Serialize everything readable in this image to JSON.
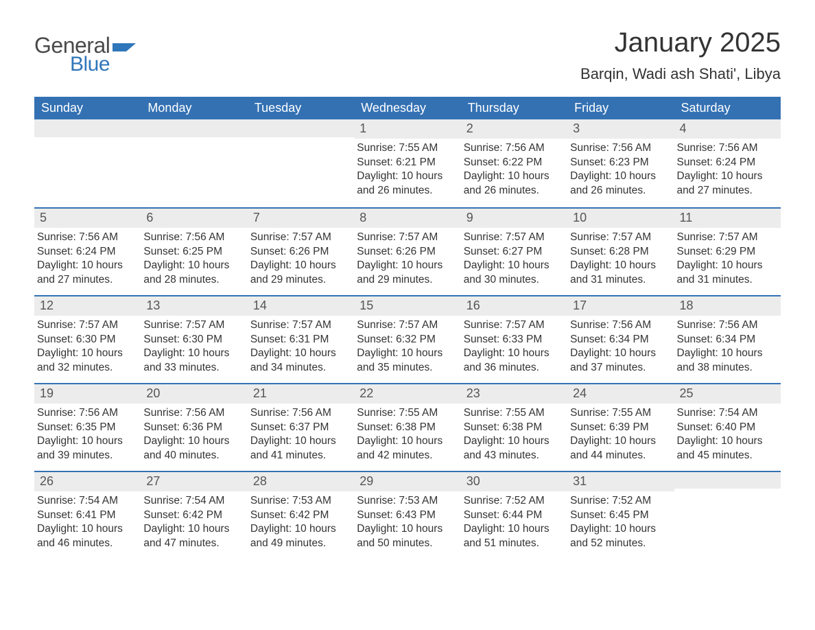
{
  "logo": {
    "word1": "General",
    "word2": "Blue",
    "text_color_general": "#4a4a4a",
    "text_color_blue": "#2f76ba",
    "flag_color": "#2f76ba"
  },
  "header": {
    "month_title": "January 2025",
    "location": "Barqin, Wadi ash Shati', Libya"
  },
  "colors": {
    "header_row_bg": "#3471b3",
    "header_row_text": "#ffffff",
    "daynum_band_bg": "#ececec",
    "daynum_band_border": "#3471b3",
    "body_text": "#333333",
    "page_bg": "#ffffff"
  },
  "typography": {
    "title_fontsize": 40,
    "location_fontsize": 22,
    "dow_fontsize": 18,
    "daynum_fontsize": 18,
    "body_fontsize": 15.5,
    "font_family": "Arial"
  },
  "days_of_week": [
    "Sunday",
    "Monday",
    "Tuesday",
    "Wednesday",
    "Thursday",
    "Friday",
    "Saturday"
  ],
  "weeks": [
    [
      {
        "empty": true
      },
      {
        "empty": true
      },
      {
        "empty": true
      },
      {
        "day": "1",
        "sunrise": "Sunrise: 7:55 AM",
        "sunset": "Sunset: 6:21 PM",
        "daylight1": "Daylight: 10 hours",
        "daylight2": "and 26 minutes."
      },
      {
        "day": "2",
        "sunrise": "Sunrise: 7:56 AM",
        "sunset": "Sunset: 6:22 PM",
        "daylight1": "Daylight: 10 hours",
        "daylight2": "and 26 minutes."
      },
      {
        "day": "3",
        "sunrise": "Sunrise: 7:56 AM",
        "sunset": "Sunset: 6:23 PM",
        "daylight1": "Daylight: 10 hours",
        "daylight2": "and 26 minutes."
      },
      {
        "day": "4",
        "sunrise": "Sunrise: 7:56 AM",
        "sunset": "Sunset: 6:24 PM",
        "daylight1": "Daylight: 10 hours",
        "daylight2": "and 27 minutes."
      }
    ],
    [
      {
        "day": "5",
        "sunrise": "Sunrise: 7:56 AM",
        "sunset": "Sunset: 6:24 PM",
        "daylight1": "Daylight: 10 hours",
        "daylight2": "and 27 minutes."
      },
      {
        "day": "6",
        "sunrise": "Sunrise: 7:56 AM",
        "sunset": "Sunset: 6:25 PM",
        "daylight1": "Daylight: 10 hours",
        "daylight2": "and 28 minutes."
      },
      {
        "day": "7",
        "sunrise": "Sunrise: 7:57 AM",
        "sunset": "Sunset: 6:26 PM",
        "daylight1": "Daylight: 10 hours",
        "daylight2": "and 29 minutes."
      },
      {
        "day": "8",
        "sunrise": "Sunrise: 7:57 AM",
        "sunset": "Sunset: 6:26 PM",
        "daylight1": "Daylight: 10 hours",
        "daylight2": "and 29 minutes."
      },
      {
        "day": "9",
        "sunrise": "Sunrise: 7:57 AM",
        "sunset": "Sunset: 6:27 PM",
        "daylight1": "Daylight: 10 hours",
        "daylight2": "and 30 minutes."
      },
      {
        "day": "10",
        "sunrise": "Sunrise: 7:57 AM",
        "sunset": "Sunset: 6:28 PM",
        "daylight1": "Daylight: 10 hours",
        "daylight2": "and 31 minutes."
      },
      {
        "day": "11",
        "sunrise": "Sunrise: 7:57 AM",
        "sunset": "Sunset: 6:29 PM",
        "daylight1": "Daylight: 10 hours",
        "daylight2": "and 31 minutes."
      }
    ],
    [
      {
        "day": "12",
        "sunrise": "Sunrise: 7:57 AM",
        "sunset": "Sunset: 6:30 PM",
        "daylight1": "Daylight: 10 hours",
        "daylight2": "and 32 minutes."
      },
      {
        "day": "13",
        "sunrise": "Sunrise: 7:57 AM",
        "sunset": "Sunset: 6:30 PM",
        "daylight1": "Daylight: 10 hours",
        "daylight2": "and 33 minutes."
      },
      {
        "day": "14",
        "sunrise": "Sunrise: 7:57 AM",
        "sunset": "Sunset: 6:31 PM",
        "daylight1": "Daylight: 10 hours",
        "daylight2": "and 34 minutes."
      },
      {
        "day": "15",
        "sunrise": "Sunrise: 7:57 AM",
        "sunset": "Sunset: 6:32 PM",
        "daylight1": "Daylight: 10 hours",
        "daylight2": "and 35 minutes."
      },
      {
        "day": "16",
        "sunrise": "Sunrise: 7:57 AM",
        "sunset": "Sunset: 6:33 PM",
        "daylight1": "Daylight: 10 hours",
        "daylight2": "and 36 minutes."
      },
      {
        "day": "17",
        "sunrise": "Sunrise: 7:56 AM",
        "sunset": "Sunset: 6:34 PM",
        "daylight1": "Daylight: 10 hours",
        "daylight2": "and 37 minutes."
      },
      {
        "day": "18",
        "sunrise": "Sunrise: 7:56 AM",
        "sunset": "Sunset: 6:34 PM",
        "daylight1": "Daylight: 10 hours",
        "daylight2": "and 38 minutes."
      }
    ],
    [
      {
        "day": "19",
        "sunrise": "Sunrise: 7:56 AM",
        "sunset": "Sunset: 6:35 PM",
        "daylight1": "Daylight: 10 hours",
        "daylight2": "and 39 minutes."
      },
      {
        "day": "20",
        "sunrise": "Sunrise: 7:56 AM",
        "sunset": "Sunset: 6:36 PM",
        "daylight1": "Daylight: 10 hours",
        "daylight2": "and 40 minutes."
      },
      {
        "day": "21",
        "sunrise": "Sunrise: 7:56 AM",
        "sunset": "Sunset: 6:37 PM",
        "daylight1": "Daylight: 10 hours",
        "daylight2": "and 41 minutes."
      },
      {
        "day": "22",
        "sunrise": "Sunrise: 7:55 AM",
        "sunset": "Sunset: 6:38 PM",
        "daylight1": "Daylight: 10 hours",
        "daylight2": "and 42 minutes."
      },
      {
        "day": "23",
        "sunrise": "Sunrise: 7:55 AM",
        "sunset": "Sunset: 6:38 PM",
        "daylight1": "Daylight: 10 hours",
        "daylight2": "and 43 minutes."
      },
      {
        "day": "24",
        "sunrise": "Sunrise: 7:55 AM",
        "sunset": "Sunset: 6:39 PM",
        "daylight1": "Daylight: 10 hours",
        "daylight2": "and 44 minutes."
      },
      {
        "day": "25",
        "sunrise": "Sunrise: 7:54 AM",
        "sunset": "Sunset: 6:40 PM",
        "daylight1": "Daylight: 10 hours",
        "daylight2": "and 45 minutes."
      }
    ],
    [
      {
        "day": "26",
        "sunrise": "Sunrise: 7:54 AM",
        "sunset": "Sunset: 6:41 PM",
        "daylight1": "Daylight: 10 hours",
        "daylight2": "and 46 minutes."
      },
      {
        "day": "27",
        "sunrise": "Sunrise: 7:54 AM",
        "sunset": "Sunset: 6:42 PM",
        "daylight1": "Daylight: 10 hours",
        "daylight2": "and 47 minutes."
      },
      {
        "day": "28",
        "sunrise": "Sunrise: 7:53 AM",
        "sunset": "Sunset: 6:42 PM",
        "daylight1": "Daylight: 10 hours",
        "daylight2": "and 49 minutes."
      },
      {
        "day": "29",
        "sunrise": "Sunrise: 7:53 AM",
        "sunset": "Sunset: 6:43 PM",
        "daylight1": "Daylight: 10 hours",
        "daylight2": "and 50 minutes."
      },
      {
        "day": "30",
        "sunrise": "Sunrise: 7:52 AM",
        "sunset": "Sunset: 6:44 PM",
        "daylight1": "Daylight: 10 hours",
        "daylight2": "and 51 minutes."
      },
      {
        "day": "31",
        "sunrise": "Sunrise: 7:52 AM",
        "sunset": "Sunset: 6:45 PM",
        "daylight1": "Daylight: 10 hours",
        "daylight2": "and 52 minutes."
      },
      {
        "empty": true
      }
    ]
  ]
}
